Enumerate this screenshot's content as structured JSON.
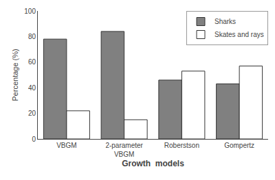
{
  "chart_data": {
    "type": "bar",
    "categories": [
      "VBGM",
      "2-parameter\nVBGM",
      "Roberstson",
      "Gompertz"
    ],
    "series": [
      {
        "name": "Sharks",
        "color": "#808080",
        "values": [
          78,
          84,
          46,
          43
        ]
      },
      {
        "name": "Skates and rays",
        "color": "#ffffff",
        "values": [
          22,
          15,
          53,
          57
        ]
      }
    ],
    "xlabel": "Growth  models",
    "ylabel": "Percentage (%)",
    "ylim": [
      0,
      100
    ],
    "yticks": [
      0,
      20,
      40,
      60,
      80,
      100
    ],
    "grid": false,
    "legend": "upper right"
  }
}
